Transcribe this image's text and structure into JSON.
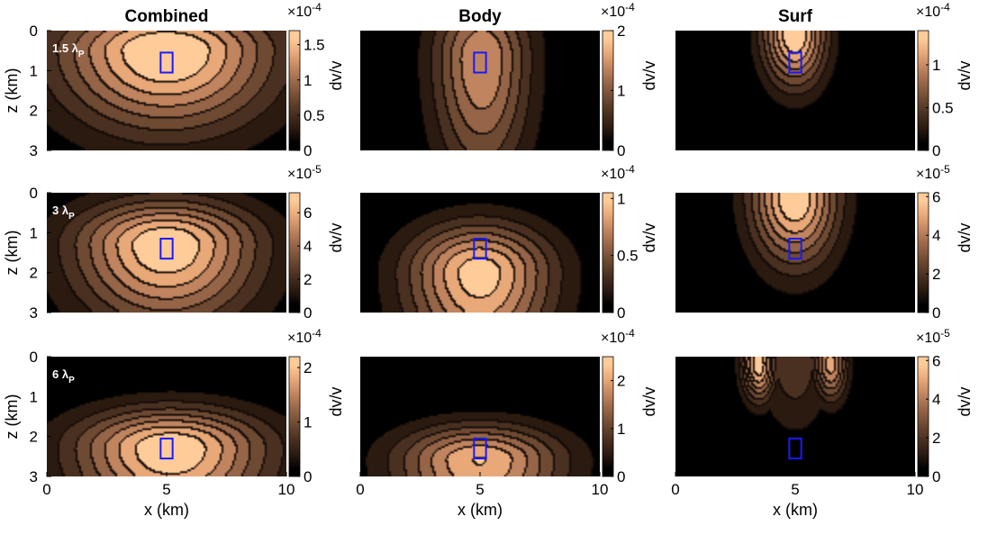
{
  "chart_data": {
    "type": "heatmap",
    "subtype": "filled contour maps, 3x3 grid",
    "columns": [
      "Combined",
      "Body",
      "Surf"
    ],
    "rows": [
      {
        "label": "1.5 λ",
        "label_subscript": "P",
        "target_z_km": 0.8
      },
      {
        "label": "3 λ",
        "label_subscript": "P",
        "target_z_km": 1.4
      },
      {
        "label": "6 λ",
        "label_subscript": "P",
        "target_z_km": 2.3
      }
    ],
    "xlabel": "x (km)",
    "ylabel": "z (km)",
    "colorbar_label": "dv/v",
    "xlim": [
      0,
      10
    ],
    "ylim": [
      0,
      3
    ],
    "y_reversed": true,
    "xticks": [
      "0",
      "5",
      "10"
    ],
    "yticks": [
      "0",
      "1",
      "2",
      "3"
    ],
    "colormap": [
      "#000000",
      "#2a1a10",
      "#4a3020",
      "#6e4a32",
      "#966548",
      "#c0845e",
      "#e8a878",
      "#ffcc99"
    ],
    "contour_line_color": "#000000",
    "target_box": {
      "x_km": [
        4.75,
        5.25
      ],
      "z_width_km": 0.5,
      "color": "#1a1aff"
    },
    "panels": [
      {
        "row": 0,
        "col": 0,
        "multiplier": "×10",
        "exponent": "-4",
        "vmax": 1.7,
        "cbar_ticks": [
          "0",
          "0.5",
          "1",
          "1.5"
        ],
        "cbar_tick_values": [
          0,
          0.5,
          1,
          1.5
        ],
        "peak": {
          "x": 5.0,
          "z": 0.5,
          "value": 1.75
        },
        "spread_x_km": 4.5,
        "spread_z_km": 2.0,
        "surface_peaks": []
      },
      {
        "row": 0,
        "col": 1,
        "multiplier": "×10",
        "exponent": "-4",
        "vmax": 2.0,
        "cbar_ticks": [
          "0",
          "1",
          "2"
        ],
        "cbar_tick_values": [
          0,
          1,
          2
        ],
        "peak": {
          "x": 5.1,
          "z": 0.7,
          "value": 1.5
        },
        "spread_x_km": 2.0,
        "spread_z_km": 3.0,
        "surface_peaks": []
      },
      {
        "row": 0,
        "col": 2,
        "multiplier": "×10",
        "exponent": "-4",
        "vmax": 1.4,
        "cbar_ticks": [
          "0",
          "0.5",
          "1"
        ],
        "cbar_tick_values": [
          0,
          0.5,
          1
        ],
        "peak": {
          "x": 5.0,
          "z": 0.1,
          "value": 1.4
        },
        "spread_x_km": 1.3,
        "spread_z_km": 1.3,
        "surface_peaks": []
      },
      {
        "row": 1,
        "col": 0,
        "multiplier": "×10",
        "exponent": "-5",
        "vmax": 7.2,
        "cbar_ticks": [
          "0",
          "2",
          "4",
          "6"
        ],
        "cbar_tick_values": [
          0,
          2,
          4,
          6
        ],
        "peak": {
          "x": 5.0,
          "z": 1.3,
          "value": 7.2
        },
        "spread_x_km": 3.8,
        "spread_z_km": 2.0,
        "surface_peaks": []
      },
      {
        "row": 1,
        "col": 1,
        "multiplier": "×10",
        "exponent": "-4",
        "vmax": 1.05,
        "cbar_ticks": [
          "0",
          "0.5",
          "1"
        ],
        "cbar_tick_values": [
          0,
          0.5,
          1
        ],
        "peak": {
          "x": 5.0,
          "z": 2.0,
          "value": 1.0
        },
        "spread_x_km": 3.0,
        "spread_z_km": 2.2,
        "surface_peaks": []
      },
      {
        "row": 1,
        "col": 2,
        "multiplier": "×10",
        "exponent": "-5",
        "vmax": 6.2,
        "cbar_ticks": [
          "0",
          "2",
          "4",
          "6"
        ],
        "cbar_tick_values": [
          0,
          2,
          4,
          6
        ],
        "peak": {
          "x": 5.0,
          "z": 0.1,
          "value": 6.2
        },
        "spread_x_km": 1.8,
        "spread_z_km": 1.7,
        "surface_peaks": []
      },
      {
        "row": 2,
        "col": 0,
        "multiplier": "×10",
        "exponent": "-4",
        "vmax": 2.2,
        "cbar_ticks": [
          "0",
          "1",
          "2"
        ],
        "cbar_tick_values": [
          0,
          1,
          2
        ],
        "peak": {
          "x": 5.2,
          "z": 2.3,
          "value": 2.2
        },
        "spread_x_km": 4.0,
        "spread_z_km": 1.8,
        "surface_peaks": []
      },
      {
        "row": 2,
        "col": 1,
        "multiplier": "×10",
        "exponent": "-4",
        "vmax": 2.5,
        "cbar_ticks": [
          "0",
          "1",
          "2"
        ],
        "cbar_tick_values": [
          0,
          1,
          2
        ],
        "peak": {
          "x": 5.0,
          "z": 2.6,
          "value": 2.2
        },
        "spread_x_km": 3.4,
        "spread_z_km": 1.6,
        "surface_peaks": []
      },
      {
        "row": 2,
        "col": 2,
        "multiplier": "×10",
        "exponent": "-5",
        "vmax": 6.2,
        "cbar_ticks": [
          "0",
          "2",
          "4",
          "6"
        ],
        "cbar_tick_values": [
          0,
          2,
          4,
          6
        ],
        "peak": {
          "x": 5.0,
          "z": 0.2,
          "value": 2.0
        },
        "spread_x_km": 1.5,
        "spread_z_km": 1.7,
        "surface_peaks": [
          {
            "x": 3.5,
            "z": 0.2,
            "value": 6.0
          },
          {
            "x": 6.5,
            "z": 0.2,
            "value": 5.0
          }
        ]
      }
    ]
  }
}
